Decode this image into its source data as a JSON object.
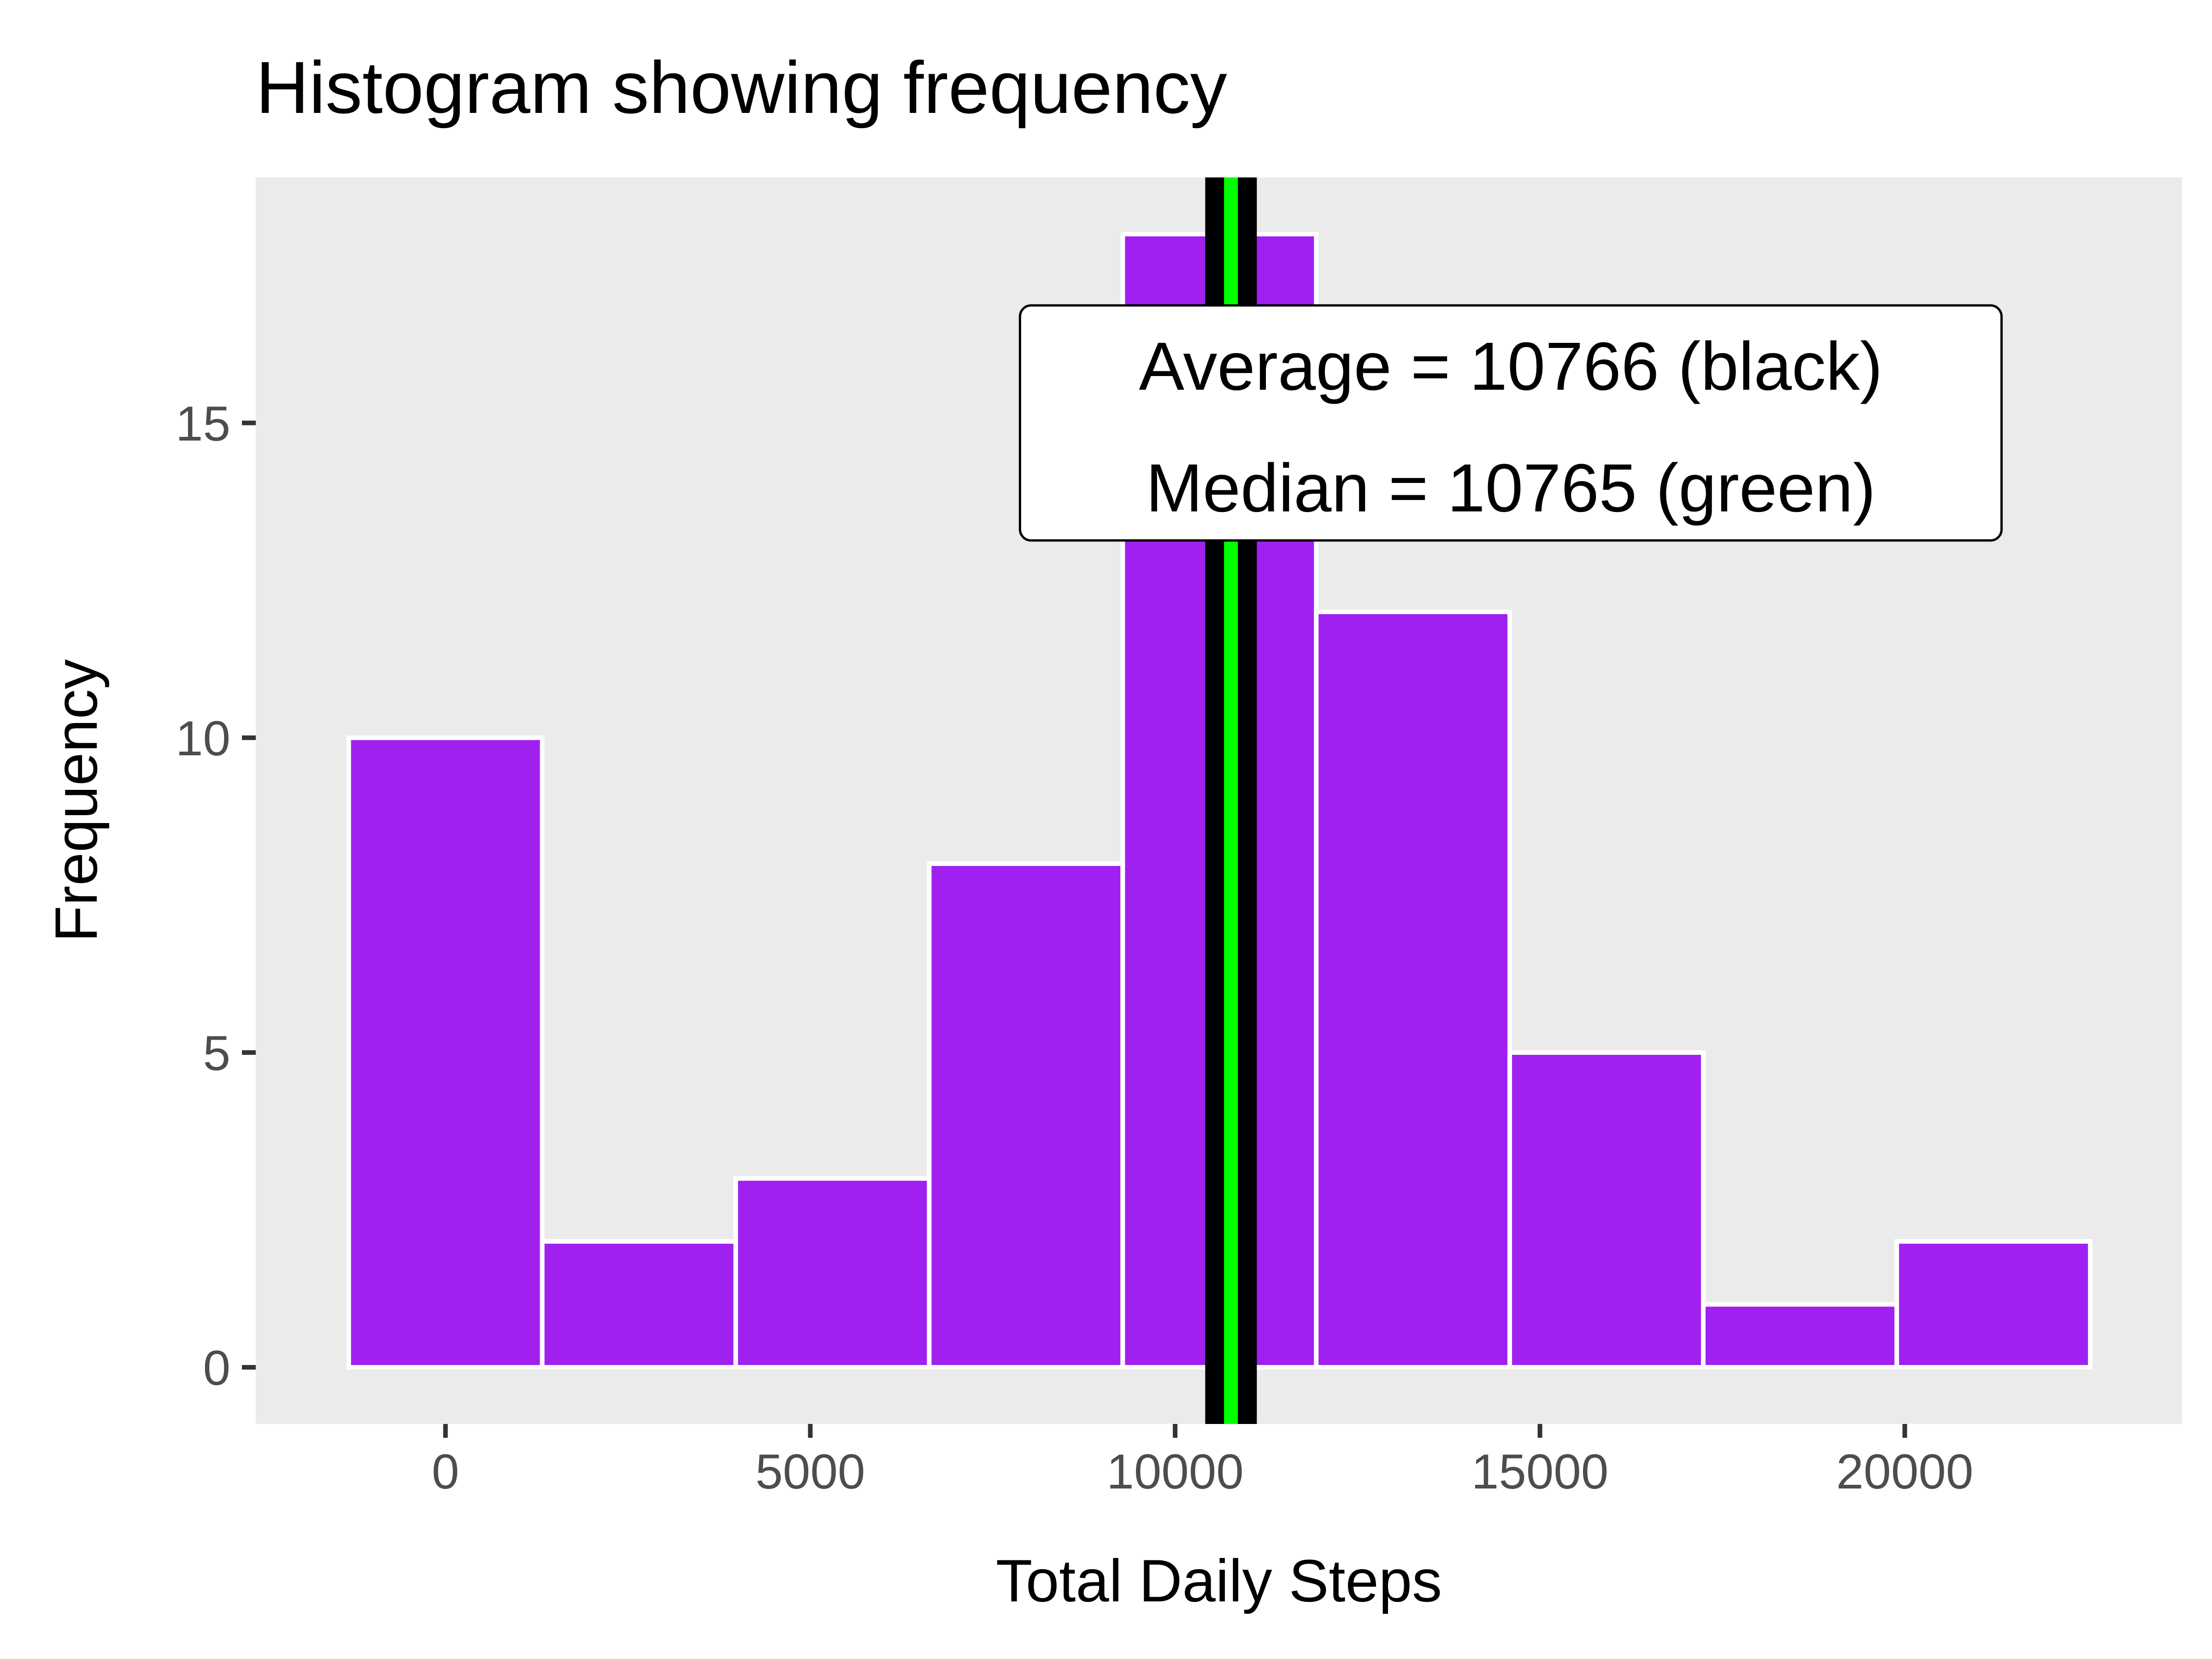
{
  "chart_data": {
    "type": "bar",
    "title": "Histogram showing frequency",
    "xlabel": "Total Daily Steps",
    "ylabel": "Frequency",
    "bin_width": 2652,
    "bins": [
      {
        "center": 0,
        "count": 10
      },
      {
        "center": 2652,
        "count": 2
      },
      {
        "center": 5304,
        "count": 3
      },
      {
        "center": 7956,
        "count": 8
      },
      {
        "center": 10608,
        "count": 18
      },
      {
        "center": 13260,
        "count": 12
      },
      {
        "center": 15912,
        "count": 5
      },
      {
        "center": 18564,
        "count": 1
      },
      {
        "center": 21216,
        "count": 2
      }
    ],
    "xlim": [
      -2600,
      23800
    ],
    "ylim": [
      -0.9,
      18.9
    ],
    "x_ticks": [
      0,
      5000,
      10000,
      15000,
      20000
    ],
    "x_tick_labels": [
      "0",
      "5000",
      "10000",
      "15000",
      "20000"
    ],
    "y_ticks": [
      0,
      5,
      10,
      15
    ],
    "y_tick_labels": [
      "0",
      "5",
      "10",
      "15"
    ],
    "mean": 10766,
    "median": 10765,
    "annotation": {
      "line1": "Average = 10766 (black)",
      "line2": "Median = 10765 (green)",
      "x": 14600,
      "y": 15.0
    },
    "grid": false,
    "colors": {
      "panel_background": "#ebebeb",
      "bar_fill": "#a020f0",
      "bar_outline": "#ffffff",
      "mean_line": "#000000",
      "median_line": "#00ff00",
      "tick_text": "#4d4d4d",
      "tick_mark": "#333333"
    }
  }
}
